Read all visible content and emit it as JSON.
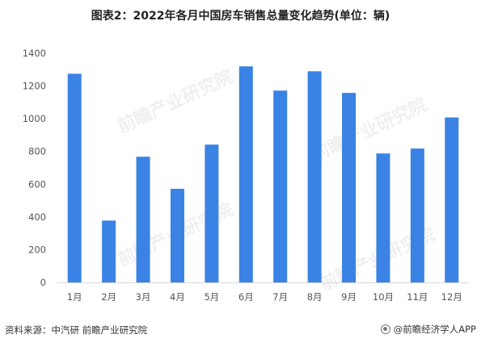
{
  "chart_data": {
    "type": "bar",
    "title": "图表2：2022年各月中国房车销售总量变化趋势(单位：辆)",
    "categories": [
      "1月",
      "2月",
      "3月",
      "4月",
      "5月",
      "6月",
      "7月",
      "8月",
      "9月",
      "10月",
      "11月",
      "12月"
    ],
    "values": [
      1275,
      378,
      768,
      572,
      842,
      1320,
      1172,
      1290,
      1158,
      788,
      818,
      1008
    ],
    "ylim": [
      0,
      1400
    ],
    "yticks": [
      0,
      200,
      400,
      600,
      800,
      1000,
      1200,
      1400
    ],
    "xlabel": "",
    "ylabel": "",
    "grid": false,
    "legend": "none",
    "bar_color": "#3A83E5"
  },
  "footer": {
    "source": "资料来源：中汽研 前瞻产业研究院",
    "brand": "@前瞻经济学人APP"
  },
  "watermark": {
    "text": "前瞻产业研究院"
  }
}
